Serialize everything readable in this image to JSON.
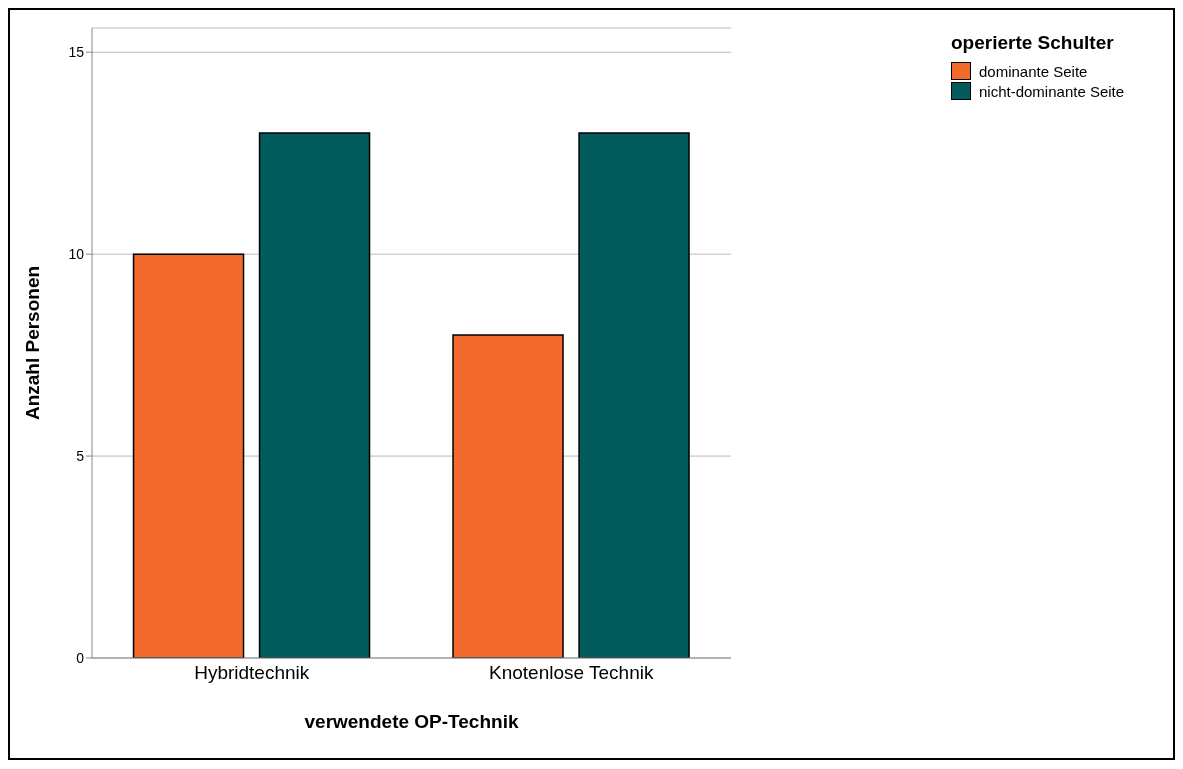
{
  "chart_data": {
    "type": "bar",
    "xlabel": "verwendete OP-Technik",
    "ylabel": "Anzahl Personen",
    "legend_title": "operierte Schulter",
    "categories": [
      "Hybridtechnik",
      "Knotenlose Technik"
    ],
    "series": [
      {
        "name": "dominante Seite",
        "color": "#f26b2d",
        "values": [
          10,
          8
        ]
      },
      {
        "name": "nicht-dominante Seite",
        "color": "#025c5c",
        "values": [
          13,
          13
        ]
      }
    ],
    "ylim": [
      0,
      15.6
    ],
    "yticks": [
      0,
      5,
      10,
      15
    ],
    "grid": "y",
    "legend": "top right"
  }
}
